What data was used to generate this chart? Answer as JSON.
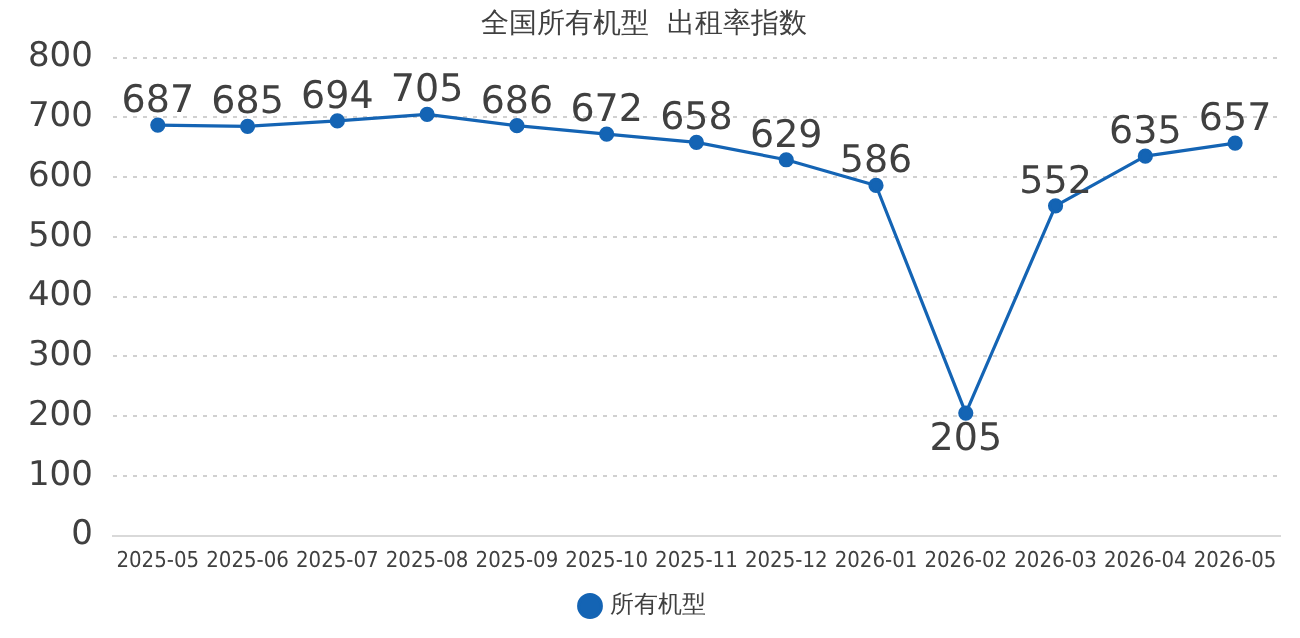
{
  "chart_data": {
    "type": "line",
    "title": "全国所有机型  出租率指数",
    "categories": [
      "2025-05",
      "2025-06",
      "2025-07",
      "2025-08",
      "2025-09",
      "2025-10",
      "2025-11",
      "2025-12",
      "2026-01",
      "2026-02",
      "2026-03",
      "2026-04",
      "2026-05"
    ],
    "series": [
      {
        "name": "所有机型",
        "color": "#1464b4",
        "values": [
          687,
          685,
          694,
          705,
          686,
          672,
          658,
          629,
          586,
          205,
          552,
          635,
          657
        ]
      }
    ],
    "ylim": [
      0,
      800
    ],
    "yticks": [
      0,
      100,
      200,
      300,
      400,
      500,
      600,
      700,
      800
    ],
    "grid": "y",
    "legend": "bottom",
    "marker": "circle",
    "line_style": "solid",
    "data_labels": true
  }
}
